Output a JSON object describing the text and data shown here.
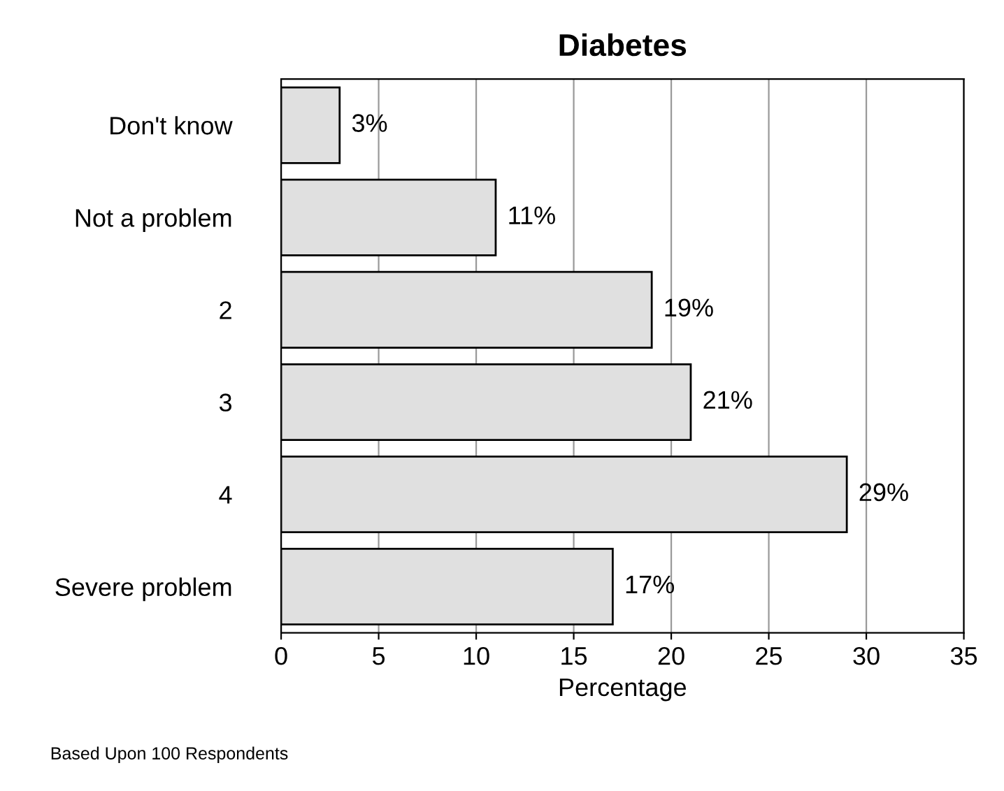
{
  "chart_data": {
    "type": "bar",
    "orientation": "horizontal",
    "title": "Diabetes",
    "xlabel": "Percentage",
    "categories": [
      "Don't know",
      "Not a problem",
      "2",
      "3",
      "4",
      "Severe problem"
    ],
    "values": [
      3,
      11,
      19,
      21,
      29,
      17
    ],
    "value_labels": [
      "3%",
      "11%",
      "19%",
      "21%",
      "29%",
      "17%"
    ],
    "color": "#e0e0e0",
    "xlim": [
      0,
      35
    ],
    "xticks": [
      0,
      5,
      10,
      15,
      20,
      25,
      30,
      35
    ],
    "grid": "x",
    "annotations": [
      "Based Upon 100 Respondents"
    ]
  }
}
